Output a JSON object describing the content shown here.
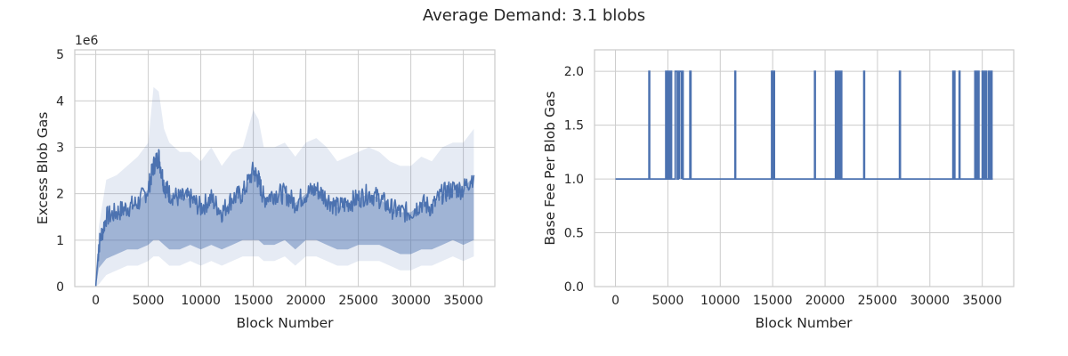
{
  "figure": {
    "title": "Average Demand: 3.1 blobs"
  },
  "colors": {
    "line": "#4c72b0",
    "band": "#4c72b0",
    "grid": "#cccccc",
    "text": "#262626"
  },
  "chart_data": [
    {
      "type": "line",
      "xlabel": "Block Number",
      "ylabel": "Excess Blob Gas",
      "y_offset_label": "1e6",
      "xlim": [
        -2000,
        38000
      ],
      "ylim": [
        0,
        5.1
      ],
      "x_ticks": [
        0,
        5000,
        10000,
        15000,
        20000,
        25000,
        30000,
        35000
      ],
      "x_tick_labels": [
        "0",
        "5000",
        "10000",
        "15000",
        "20000",
        "25000",
        "30000",
        "35000"
      ],
      "y_ticks": [
        0,
        1,
        2,
        3,
        4,
        5
      ],
      "y_tick_labels": [
        "0",
        "1",
        "2",
        "3",
        "4",
        "5"
      ],
      "grid": true,
      "series": [
        {
          "style": "line with shaded min-max band",
          "x": [
            0,
            300,
            1000,
            2000,
            3000,
            4000,
            5000,
            5500,
            6000,
            6500,
            7000,
            8000,
            9000,
            10000,
            11000,
            12000,
            13000,
            14000,
            15000,
            15500,
            16000,
            17000,
            18000,
            19000,
            20000,
            21000,
            22000,
            23000,
            24000,
            25000,
            26000,
            27000,
            28000,
            29000,
            30000,
            31000,
            32000,
            33000,
            34000,
            35000,
            36000
          ],
          "values": [
            0,
            0.9,
            1.5,
            1.6,
            1.7,
            1.8,
            2.1,
            2.6,
            2.8,
            2.2,
            2.0,
            1.9,
            1.9,
            1.7,
            1.9,
            1.6,
            1.9,
            2.0,
            2.5,
            2.3,
            1.9,
            2.0,
            2.0,
            1.8,
            2.0,
            2.1,
            1.9,
            1.7,
            1.8,
            1.9,
            2.0,
            1.9,
            1.7,
            1.6,
            1.6,
            1.8,
            1.7,
            2.0,
            2.1,
            2.1,
            2.4
          ],
          "band_low": [
            0,
            0.4,
            0.6,
            0.7,
            0.8,
            0.8,
            0.9,
            1.0,
            1.0,
            0.9,
            0.8,
            0.8,
            0.9,
            0.8,
            0.9,
            0.8,
            0.9,
            1.0,
            1.0,
            1.0,
            0.9,
            0.9,
            1.0,
            0.8,
            1.0,
            1.0,
            0.9,
            0.8,
            0.8,
            0.9,
            0.9,
            0.9,
            0.8,
            0.7,
            0.7,
            0.8,
            0.8,
            0.9,
            1.0,
            0.9,
            1.0
          ],
          "band_high": [
            0.3,
            1.3,
            2.3,
            2.4,
            2.6,
            2.8,
            3.1,
            4.3,
            4.2,
            3.4,
            3.1,
            2.9,
            2.9,
            2.7,
            3.0,
            2.6,
            2.9,
            3.0,
            3.8,
            3.6,
            3.0,
            3.0,
            3.1,
            2.8,
            3.1,
            3.2,
            3.0,
            2.7,
            2.8,
            2.9,
            3.0,
            2.9,
            2.7,
            2.6,
            2.6,
            2.8,
            2.7,
            3.0,
            3.1,
            3.1,
            3.4
          ]
        }
      ]
    },
    {
      "type": "line",
      "xlabel": "Block Number",
      "ylabel": "Base Fee Per Blob Gas",
      "xlim": [
        -2000,
        38000
      ],
      "ylim": [
        0,
        2.2
      ],
      "x_ticks": [
        0,
        5000,
        10000,
        15000,
        20000,
        25000,
        30000,
        35000
      ],
      "x_tick_labels": [
        "0",
        "5000",
        "10000",
        "15000",
        "20000",
        "25000",
        "30000",
        "35000"
      ],
      "y_ticks": [
        0.0,
        0.5,
        1.0,
        1.5,
        2.0
      ],
      "y_tick_labels": [
        "0.0",
        "0.5",
        "1.0",
        "1.5",
        "2.0"
      ],
      "grid": true,
      "series": [
        {
          "style": "step",
          "baseline": 1.0,
          "spike_value": 2.0,
          "spike_x": [
            3200,
            4800,
            5000,
            5200,
            5700,
            5900,
            6100,
            6300,
            7100,
            11400,
            14900,
            15000,
            15100,
            19000,
            21000,
            21100,
            21200,
            21300,
            21400,
            21500,
            23700,
            27100,
            32200,
            32300,
            32800,
            34300,
            34400,
            34600,
            35000,
            35100,
            35300,
            35600,
            35800
          ],
          "spike_width": [
            60,
            150,
            100,
            150,
            300,
            200,
            200,
            150,
            100,
            60,
            80,
            80,
            60,
            60,
            80,
            80,
            80,
            80,
            80,
            80,
            60,
            80,
            80,
            80,
            60,
            80,
            80,
            80,
            80,
            100,
            100,
            100,
            120
          ]
        }
      ]
    }
  ]
}
